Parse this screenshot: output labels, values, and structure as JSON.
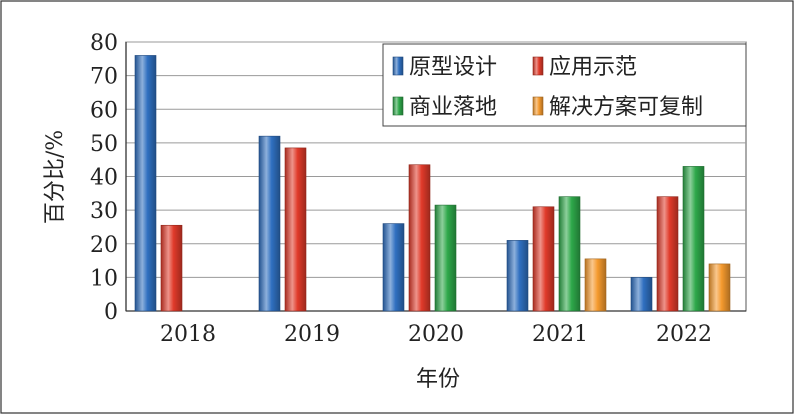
{
  "chart_data": {
    "type": "bar",
    "title": "",
    "xlabel": "年份",
    "ylabel": "百分比/%",
    "ylim": [
      0,
      80
    ],
    "yticks": [
      0,
      10,
      20,
      30,
      40,
      50,
      60,
      70,
      80
    ],
    "grid": true,
    "legend_position": "top-right",
    "categories": [
      "2018",
      "2019",
      "2020",
      "2021",
      "2022"
    ],
    "series": [
      {
        "name": "原型设计",
        "color": "#2f6fc0",
        "values": [
          76,
          52,
          26,
          21,
          10
        ]
      },
      {
        "name": "应用示范",
        "color": "#e03a2a",
        "values": [
          25.5,
          48.5,
          43.5,
          31,
          34
        ]
      },
      {
        "name": "商业落地",
        "color": "#2ea84a",
        "values": [
          null,
          null,
          31.5,
          34,
          43
        ]
      },
      {
        "name": "解决方案可复制",
        "color": "#f59a2e",
        "values": [
          null,
          null,
          null,
          15.5,
          14
        ]
      }
    ]
  }
}
